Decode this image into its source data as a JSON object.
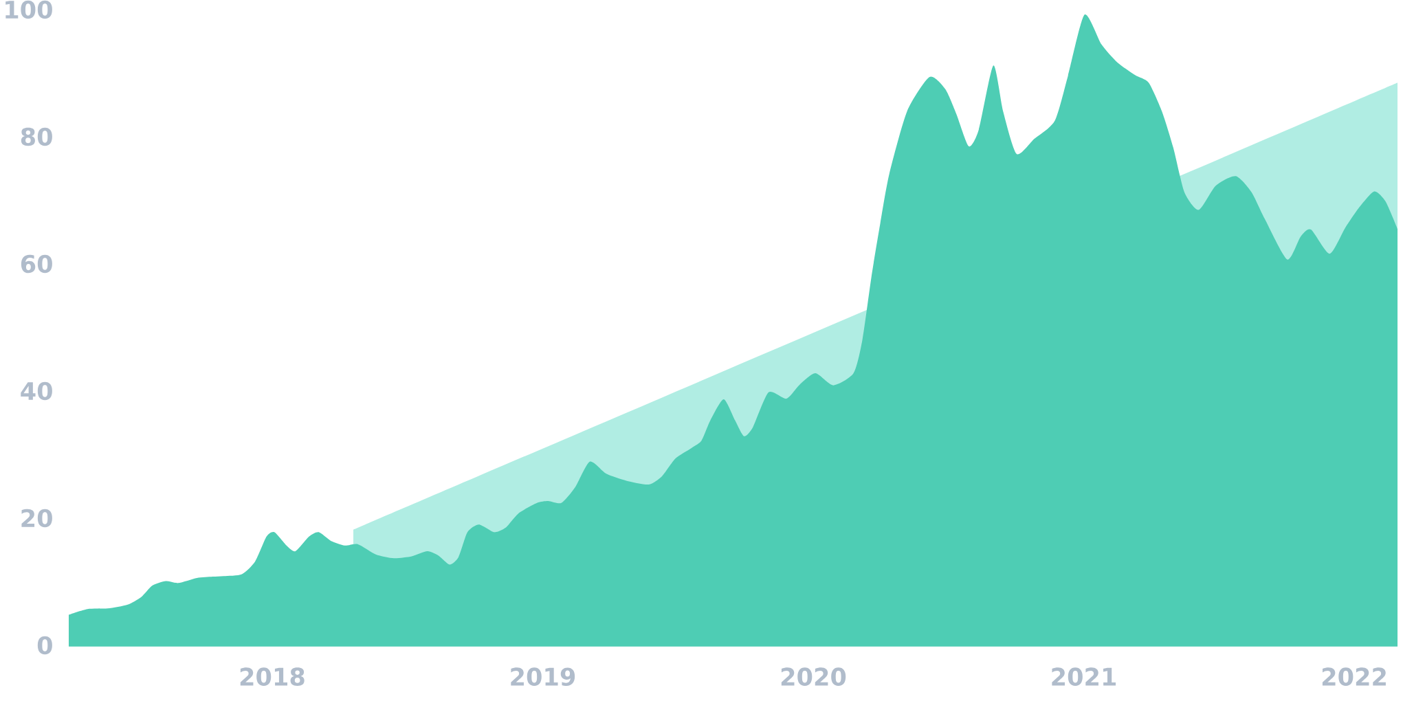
{
  "chart_data": {
    "type": "area",
    "xlim": [
      2017.248,
      2022.16
    ],
    "ylim": [
      0,
      100
    ],
    "xticks": [
      2018,
      2019,
      2020,
      2021,
      2022
    ],
    "yticks": [
      0,
      20,
      40,
      60,
      80,
      100
    ],
    "series": [
      {
        "color": "#b0ede3",
        "x": [
          2018.3,
          2022.16
        ],
        "values": [
          18.2,
          88.5
        ]
      },
      {
        "color": "#4ecdb4",
        "x": [
          2017.248,
          2017.317,
          2017.392,
          2017.466,
          2017.516,
          2017.557,
          2017.607,
          2017.653,
          2017.722,
          2017.78,
          2017.821,
          2017.888,
          2017.937,
          2017.979,
          2018.008,
          2018.053,
          2018.086,
          2018.136,
          2018.172,
          2018.218,
          2018.268,
          2018.317,
          2018.383,
          2018.45,
          2018.516,
          2018.574,
          2018.615,
          2018.656,
          2018.689,
          2018.722,
          2018.764,
          2018.821,
          2018.863,
          2018.912,
          2018.979,
          2019.02,
          2019.069,
          2019.119,
          2019.174,
          2019.235,
          2019.309,
          2019.392,
          2019.441,
          2019.491,
          2019.549,
          2019.587,
          2019.62,
          2019.669,
          2019.711,
          2019.744,
          2019.777,
          2019.835,
          2019.901,
          2019.95,
          2020.008,
          2020.074,
          2020.149,
          2020.182,
          2020.215,
          2020.248,
          2020.281,
          2020.347,
          2020.43,
          2020.488,
          2020.529,
          2020.575,
          2020.612,
          2020.666,
          2020.702,
          2020.752,
          2020.818,
          2020.893,
          2020.942,
          2021.003,
          2021.066,
          2021.124,
          2021.19,
          2021.24,
          2021.289,
          2021.331,
          2021.372,
          2021.425,
          2021.488,
          2021.562,
          2021.62,
          2021.669,
          2021.752,
          2021.802,
          2021.84,
          2021.909,
          2021.967,
          2022.017,
          2022.074,
          2022.116,
          2022.16
        ],
        "values": [
          4.8,
          5.7,
          5.8,
          6.4,
          7.6,
          9.4,
          10.1,
          9.8,
          10.6,
          10.8,
          10.9,
          11.2,
          13.2,
          17.1,
          17.8,
          15.7,
          14.8,
          17.1,
          17.8,
          16.4,
          15.7,
          15.9,
          14.3,
          13.7,
          14.0,
          14.8,
          14.1,
          12.7,
          13.9,
          17.8,
          19.0,
          17.8,
          18.5,
          20.8,
          22.4,
          22.7,
          22.4,
          24.8,
          28.9,
          27.0,
          25.9,
          25.3,
          26.6,
          29.4,
          31.0,
          32.2,
          35.4,
          38.7,
          35.4,
          32.9,
          34.3,
          39.8,
          38.8,
          41.0,
          42.8,
          40.9,
          42.8,
          48.1,
          57.9,
          66.4,
          74.1,
          84.0,
          89.4,
          87.5,
          83.6,
          78.5,
          81.1,
          91.2,
          84.0,
          77.3,
          79.7,
          82.5,
          89.6,
          99.2,
          94.5,
          91.7,
          89.7,
          88.5,
          84.0,
          78.3,
          71.3,
          68.5,
          72.3,
          73.8,
          71.3,
          67.1,
          60.7,
          64.3,
          65.4,
          61.6,
          65.7,
          68.8,
          71.4,
          69.8,
          65.5
        ]
      }
    ]
  }
}
